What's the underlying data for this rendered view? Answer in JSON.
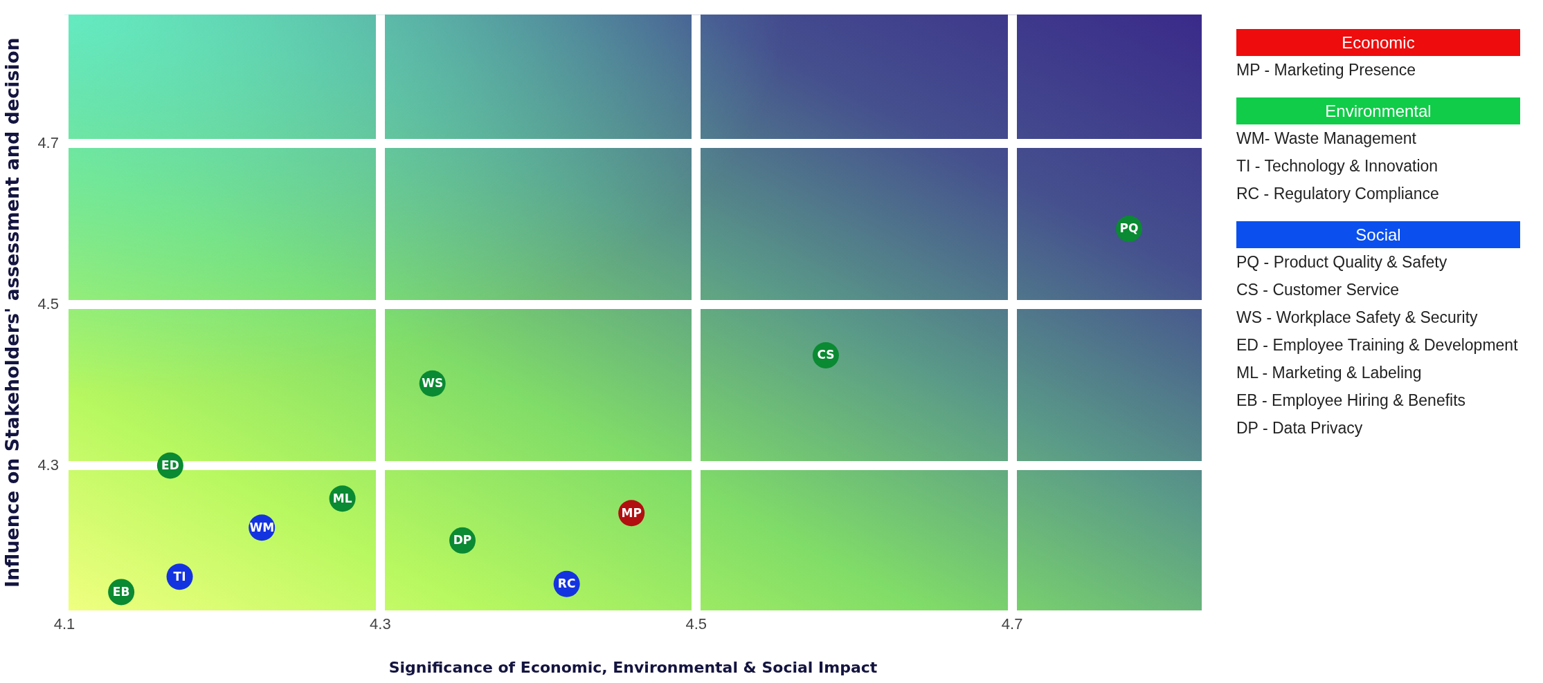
{
  "chart_data": {
    "type": "scatter",
    "xlabel": "Significance of Economic, Environmental & Social Impact",
    "ylabel": "Influence on Stakeholders' assessment and decision",
    "xlim": [
      4.1,
      4.82
    ],
    "xticks": [
      4.1,
      4.3,
      4.5,
      4.7
    ],
    "ylim": [
      4.12,
      4.86
    ],
    "yticks": [
      4.3,
      4.5,
      4.7
    ],
    "grid": true,
    "marker": "circle",
    "series": [
      {
        "color": "#ee0c0c",
        "x": [
          4.459
        ],
        "values": [
          4.241
        ],
        "colors": [
          "#b20f10"
        ],
        "value_labels": [
          "MP"
        ]
      },
      {
        "color": "#10cc48",
        "x": [
          4.225,
          4.173,
          4.418
        ],
        "values": [
          4.223,
          4.162,
          4.153
        ],
        "colors": [
          "#1433e0",
          "#1433e0",
          "#1433e0"
        ],
        "value_labels": [
          "WM",
          "TI",
          "RC"
        ]
      },
      {
        "color": "#0b50ee",
        "x": [
          4.774,
          4.582,
          4.333,
          4.167,
          4.276,
          4.136,
          4.352
        ],
        "values": [
          4.594,
          4.437,
          4.402,
          4.3,
          4.259,
          4.143,
          4.207
        ],
        "colors": [
          "#0a8a32",
          "#0a8a32",
          "#0a8a32",
          "#0a8a32",
          "#0a8a32",
          "#0a8a32",
          "#0a8a32"
        ],
        "value_labels": [
          "PQ",
          "CS",
          "WS",
          "ED",
          "ML",
          "EB",
          "DP"
        ]
      }
    ],
    "annotations": [
      "Economic",
      "MP - Marketing Presence",
      "Environmental",
      "WM- Waste Management",
      "TI - Technology & Innovation",
      "RC - Regulatory Compliance",
      "Social",
      "PQ - Product Quality & Safety",
      "CS - Customer Service",
      "WS - Workplace Safety & Security",
      "ED - Employee Training & Development",
      "ML - Marketing & Labeling",
      "EB - Employee Hiring & Benefits",
      "DP - Data Privacy"
    ]
  }
}
